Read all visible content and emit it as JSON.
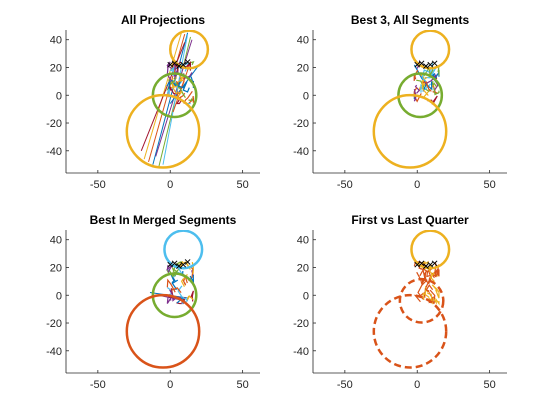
{
  "chart_data": [
    {
      "type": "line",
      "title": "All Projections",
      "xlim": [
        -72,
        62
      ],
      "ylim": [
        -56,
        47
      ],
      "xticks": [
        -50,
        0,
        50
      ],
      "yticks": [
        40,
        20,
        0,
        -20,
        -40
      ],
      "grid": false,
      "circles": [
        {
          "cx": 13,
          "cy": 33,
          "r": 13,
          "color": "#EDB120",
          "dash": false
        },
        {
          "cx": 3,
          "cy": 0,
          "r": 15,
          "color": "#77AC30",
          "dash": false
        },
        {
          "cx": -5,
          "cy": -26,
          "r": 25,
          "color": "#EDB120",
          "dash": false
        }
      ],
      "markers": [
        {
          "x": 0,
          "y": 22
        },
        {
          "x": 3,
          "y": 23
        },
        {
          "x": 6,
          "y": 21
        },
        {
          "x": 9,
          "y": 22
        },
        {
          "x": 12,
          "y": 24
        }
      ],
      "lines": [
        {
          "x": [
            -15,
            10
          ],
          "y": [
            -48,
            44
          ],
          "color": "#D95319"
        },
        {
          "x": [
            -12,
            12
          ],
          "y": [
            -50,
            45
          ],
          "color": "#0072BD"
        },
        {
          "x": [
            -8,
            14
          ],
          "y": [
            -52,
            42
          ],
          "color": "#77AC30"
        },
        {
          "x": [
            -18,
            8
          ],
          "y": [
            -46,
            46
          ],
          "color": "#EDB120"
        },
        {
          "x": [
            -10,
            15
          ],
          "y": [
            -44,
            40
          ],
          "color": "#7E2F8E"
        },
        {
          "x": [
            -5,
            12
          ],
          "y": [
            -50,
            44
          ],
          "color": "#4DBEEE"
        },
        {
          "x": [
            -20,
            10
          ],
          "y": [
            -40,
            38
          ],
          "color": "#A2142F"
        },
        {
          "x": [
            0,
            20
          ],
          "y": [
            -6,
            22
          ],
          "color": "#0072BD"
        },
        {
          "x": [
            2,
            14
          ],
          "y": [
            -12,
            24
          ],
          "color": "#D95319"
        }
      ],
      "cluster": {
        "x0": -2,
        "x1": 16,
        "y0": -6,
        "y1": 24
      }
    },
    {
      "type": "line",
      "title": "Best 3, All Segments",
      "xlim": [
        -72,
        62
      ],
      "ylim": [
        -56,
        47
      ],
      "xticks": [
        -50,
        0,
        50
      ],
      "yticks": [
        40,
        20,
        0,
        -20,
        -40
      ],
      "grid": false,
      "circles": [
        {
          "cx": 9,
          "cy": 33,
          "r": 13,
          "color": "#EDB120",
          "dash": false
        },
        {
          "cx": 2,
          "cy": 0,
          "r": 15,
          "color": "#77AC30",
          "dash": false
        },
        {
          "cx": -5,
          "cy": -26,
          "r": 25,
          "color": "#EDB120",
          "dash": false
        }
      ],
      "markers": [
        {
          "x": 0,
          "y": 22
        },
        {
          "x": 3,
          "y": 23
        },
        {
          "x": 6,
          "y": 21
        },
        {
          "x": 9,
          "y": 22
        },
        {
          "x": 12,
          "y": 23
        }
      ],
      "lines": [],
      "cluster": {
        "x0": -2,
        "x1": 15,
        "y0": -6,
        "y1": 24
      }
    },
    {
      "type": "line",
      "title": "Best In Merged Segments",
      "xlim": [
        -72,
        62
      ],
      "ylim": [
        -56,
        47
      ],
      "xticks": [
        -50,
        0,
        50
      ],
      "yticks": [
        40,
        20,
        0,
        -20,
        -40
      ],
      "grid": false,
      "circles": [
        {
          "cx": 9,
          "cy": 33,
          "r": 13,
          "color": "#4DBEEE",
          "dash": false
        },
        {
          "cx": 3,
          "cy": 0,
          "r": 15,
          "color": "#77AC30",
          "dash": false
        },
        {
          "cx": -5,
          "cy": -26,
          "r": 25,
          "color": "#D95319",
          "dash": false
        }
      ],
      "markers": [
        {
          "x": 0,
          "y": 22
        },
        {
          "x": 3,
          "y": 23
        },
        {
          "x": 6,
          "y": 21
        },
        {
          "x": 9,
          "y": 22
        },
        {
          "x": 12,
          "y": 24
        }
      ],
      "lines": [
        {
          "x": [
            -14,
            12
          ],
          "y": [
            2,
            -2
          ],
          "color": "#0072BD"
        },
        {
          "x": [
            -8,
            10
          ],
          "y": [
            0,
            -4
          ],
          "color": "#7E2F8E"
        }
      ],
      "cluster": {
        "x0": -2,
        "x1": 16,
        "y0": -6,
        "y1": 24
      }
    },
    {
      "type": "line",
      "title": "First vs Last Quarter",
      "xlim": [
        -72,
        62
      ],
      "ylim": [
        -56,
        47
      ],
      "xticks": [
        -50,
        0,
        50
      ],
      "yticks": [
        40,
        20,
        0,
        -20,
        -40
      ],
      "grid": false,
      "circles": [
        {
          "cx": 9,
          "cy": 33,
          "r": 13,
          "color": "#EDB120",
          "dash": false
        },
        {
          "cx": 3,
          "cy": -4,
          "r": 15,
          "color": "#D95319",
          "dash": true
        },
        {
          "cx": -5,
          "cy": -26,
          "r": 25,
          "color": "#D95319",
          "dash": true
        }
      ],
      "markers": [
        {
          "x": 0,
          "y": 22
        },
        {
          "x": 3,
          "y": 23
        },
        {
          "x": 6,
          "y": 21
        },
        {
          "x": 9,
          "y": 22
        },
        {
          "x": 12,
          "y": 23
        }
      ],
      "lines": [],
      "cluster": {
        "x0": -2,
        "x1": 15,
        "y0": -6,
        "y1": 24
      }
    }
  ]
}
